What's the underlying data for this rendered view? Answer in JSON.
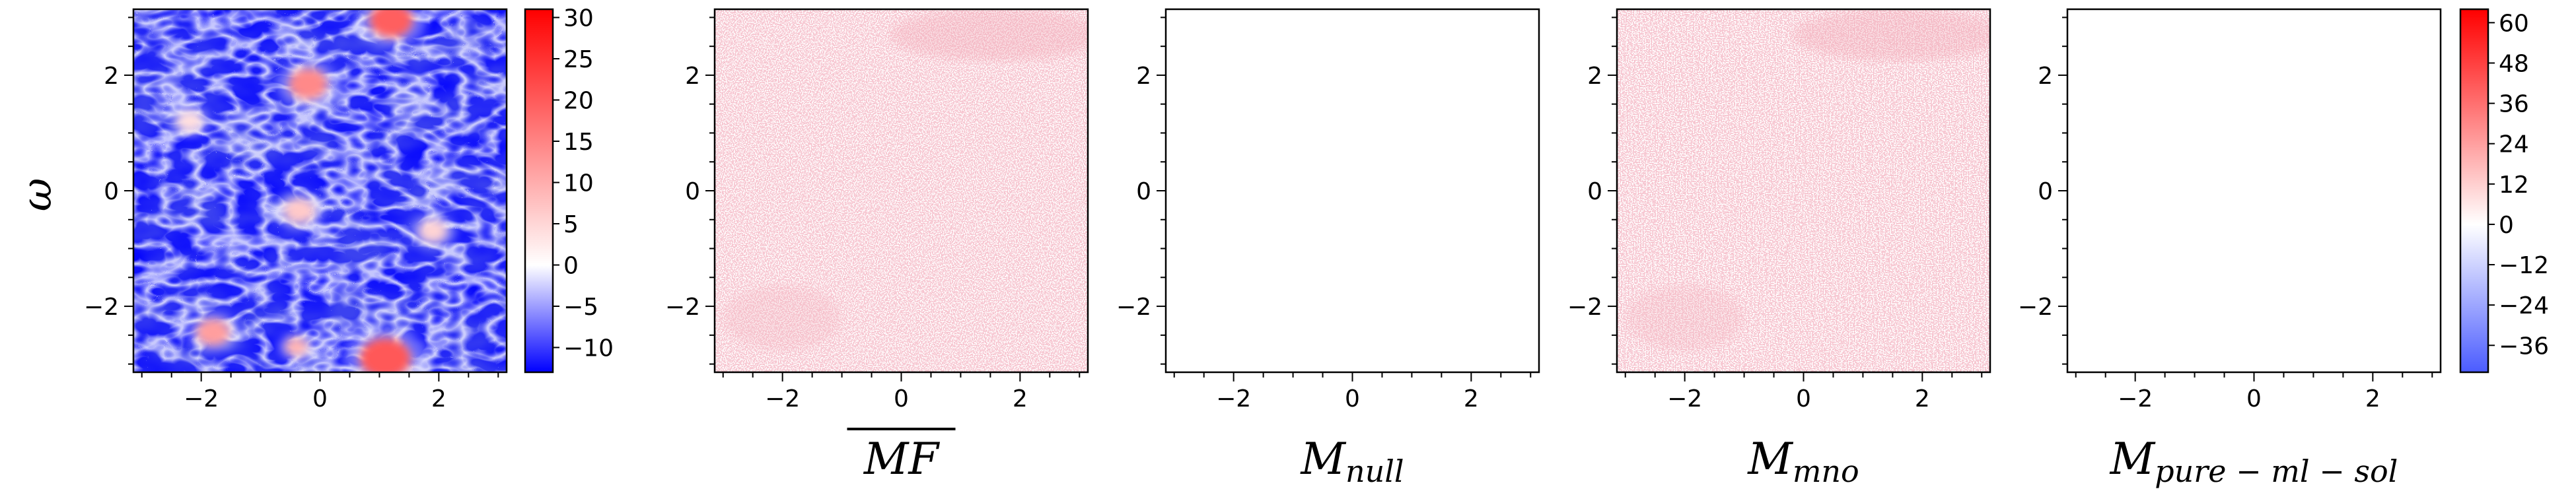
{
  "figure": {
    "ylabel": "ω"
  },
  "chart_data": [
    {
      "type": "heatmap",
      "title": "",
      "xlabel": "",
      "ylabel": "ω",
      "xlim": [
        -3.1416,
        3.1416
      ],
      "ylim": [
        -3.1416,
        3.1416
      ],
      "xticks": [
        "−2",
        "0",
        "2"
      ],
      "yticks": [
        "−2",
        "0",
        "2"
      ],
      "colormap": "bwr",
      "colors": {
        "low": "#0000ff",
        "mid": "#ffffff",
        "high": "#ff0000"
      },
      "vmin": -13,
      "vmax": 31,
      "colorbar_ticks": [
        "30",
        "25",
        "20",
        "15",
        "10",
        "5",
        "0",
        "−5",
        "−10"
      ],
      "features": [
        {
          "x": 1.2,
          "y": 2.95,
          "value": 30
        },
        {
          "x": -0.2,
          "y": 1.85,
          "value": 22
        },
        {
          "x": 1.1,
          "y": -2.9,
          "value": 31
        },
        {
          "x": -1.8,
          "y": -2.45,
          "value": 18
        },
        {
          "x": -0.4,
          "y": -2.7,
          "value": 14
        },
        {
          "x": -0.35,
          "y": -0.35,
          "value": 10
        },
        {
          "x": 1.9,
          "y": -0.7,
          "value": 8
        },
        {
          "x": -2.2,
          "y": 1.2,
          "value": 6
        }
      ]
    },
    {
      "type": "heatmap",
      "xlabel": "MF",
      "xlabel_overline": true,
      "xlim": [
        -3.1416,
        3.1416
      ],
      "ylim": [
        -3.1416,
        3.1416
      ],
      "xticks": [
        "−2",
        "0",
        "2"
      ],
      "yticks": [
        "−2",
        "0",
        "2"
      ],
      "pattern": "faint dotted red texture, strongest near top-right and lower-left",
      "approx_range": [
        -4,
        20
      ]
    },
    {
      "type": "heatmap",
      "xlabel": "M",
      "xlabel_sub": "null",
      "xlim": [
        -3.1416,
        3.1416
      ],
      "ylim": [
        -3.1416,
        3.1416
      ],
      "xticks": [
        "−2",
        "0",
        "2"
      ],
      "yticks": [
        "−2",
        "0",
        "2"
      ],
      "pattern": "blank (≈0 everywhere)"
    },
    {
      "type": "heatmap",
      "xlabel": "M",
      "xlabel_sub": "mno",
      "xlim": [
        -3.1416,
        3.1416
      ],
      "ylim": [
        -3.1416,
        3.1416
      ],
      "xticks": [
        "−2",
        "0",
        "2"
      ],
      "yticks": [
        "−2",
        "0",
        "2"
      ],
      "pattern": "faint dotted red texture, strongest near top-right and lower-left",
      "approx_range": [
        -4,
        20
      ]
    },
    {
      "type": "heatmap",
      "xlabel": "M",
      "xlabel_sub": "pure − ml − sol",
      "xlim": [
        -3.1416,
        3.1416
      ],
      "ylim": [
        -3.1416,
        3.1416
      ],
      "xticks": [
        "−2",
        "0",
        "2"
      ],
      "yticks": [
        "−2",
        "0",
        "2"
      ],
      "colormap": "bwr",
      "colors": {
        "low": "#4b5cff",
        "mid": "#ffffff",
        "high": "#ff0000"
      },
      "vmin": -44,
      "vmax": 64,
      "colorbar_ticks": [
        "60",
        "48",
        "36",
        "24",
        "12",
        "0",
        "−12",
        "−24",
        "−36"
      ],
      "pattern": "blank (≈0 everywhere)"
    }
  ]
}
